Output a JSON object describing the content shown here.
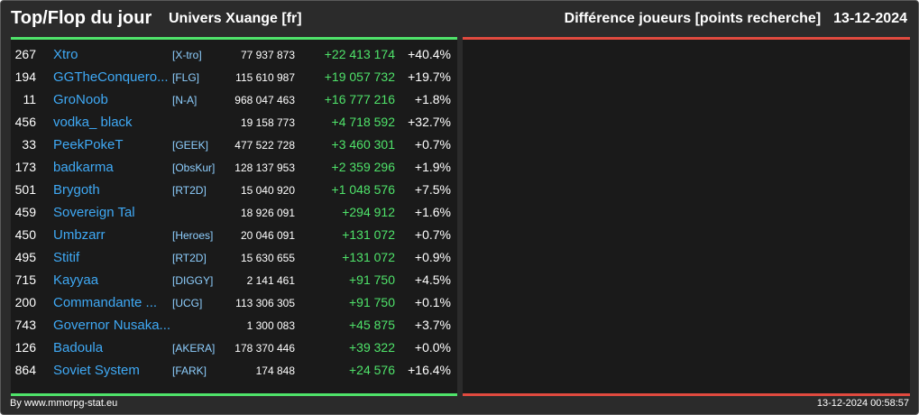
{
  "header": {
    "title": "Top/Flop du jour",
    "universe": "Univers Xuange [fr]",
    "metric": "Différence joueurs [points recherche]",
    "date": "13-12-2024"
  },
  "colors": {
    "positive": "#4fe36a",
    "negative": "#e04a3f",
    "player_name": "#3fa9f5",
    "alliance_tag": "#8ecfff"
  },
  "top_rows": [
    {
      "rank": "267",
      "name": "Xtro",
      "tag": "[X-tro]",
      "points": "77 937 873",
      "diff": "+22 413 174",
      "pct": "+40.4%"
    },
    {
      "rank": "194",
      "name": "GGTheConquero...",
      "tag": "[FLG]",
      "points": "115 610 987",
      "diff": "+19 057 732",
      "pct": "+19.7%"
    },
    {
      "rank": "11",
      "name": "GroNoob",
      "tag": "[N-A]",
      "points": "968 047 463",
      "diff": "+16 777 216",
      "pct": "+1.8%"
    },
    {
      "rank": "456",
      "name": "vodka_ black",
      "tag": "",
      "points": "19 158 773",
      "diff": "+4 718 592",
      "pct": "+32.7%"
    },
    {
      "rank": "33",
      "name": "PeekPokeT",
      "tag": "[GEEK]",
      "points": "477 522 728",
      "diff": "+3 460 301",
      "pct": "+0.7%"
    },
    {
      "rank": "173",
      "name": "badkarma",
      "tag": "[ObsKur]",
      "points": "128 137 953",
      "diff": "+2 359 296",
      "pct": "+1.9%"
    },
    {
      "rank": "501",
      "name": "Brygoth",
      "tag": "[RT2D]",
      "points": "15 040 920",
      "diff": "+1 048 576",
      "pct": "+7.5%"
    },
    {
      "rank": "459",
      "name": "Sovereign Tal",
      "tag": "",
      "points": "18 926 091",
      "diff": "+294 912",
      "pct": "+1.6%"
    },
    {
      "rank": "450",
      "name": "Umbzarr",
      "tag": "[Heroes]",
      "points": "20 046 091",
      "diff": "+131 072",
      "pct": "+0.7%"
    },
    {
      "rank": "495",
      "name": "Stitif",
      "tag": "[RT2D]",
      "points": "15 630 655",
      "diff": "+131 072",
      "pct": "+0.9%"
    },
    {
      "rank": "715",
      "name": "Kayyaa",
      "tag": "[DIGGY]",
      "points": "2 141 461",
      "diff": "+91 750",
      "pct": "+4.5%"
    },
    {
      "rank": "200",
      "name": "Commandante ...",
      "tag": "[UCG]",
      "points": "113 306 305",
      "diff": "+91 750",
      "pct": "+0.1%"
    },
    {
      "rank": "743",
      "name": "Governor Nusaka...",
      "tag": "",
      "points": "1 300 083",
      "diff": "+45 875",
      "pct": "+3.7%"
    },
    {
      "rank": "126",
      "name": "Badoula",
      "tag": "[AKERA]",
      "points": "178 370 446",
      "diff": "+39 322",
      "pct": "+0.0%"
    },
    {
      "rank": "864",
      "name": "Soviet System",
      "tag": "[FARK]",
      "points": "174 848",
      "diff": "+24 576",
      "pct": "+16.4%"
    }
  ],
  "footer": {
    "credit": "By www.mmorpg-stat.eu",
    "timestamp": "13-12-2024 00:58:57"
  }
}
